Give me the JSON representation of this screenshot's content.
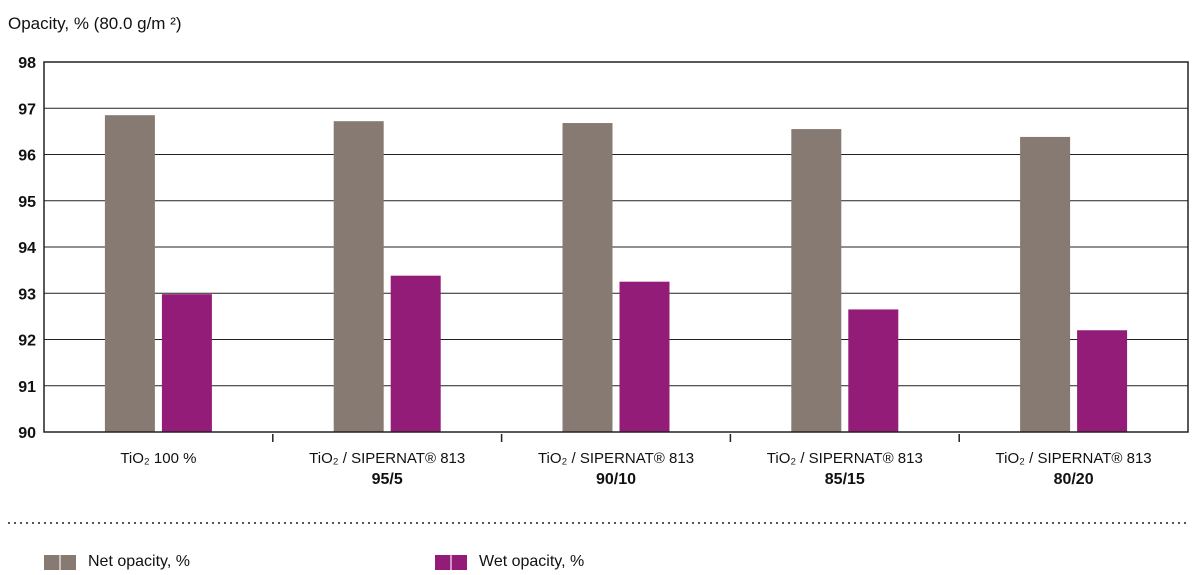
{
  "chart_data": {
    "type": "bar",
    "title": "Opacity, % (80.0 g/m ²)",
    "categories": [
      {
        "line1": "TiO₂ 100 %",
        "line2": ""
      },
      {
        "line1": "TiO₂ / SIPERNAT® 813",
        "line2": "95/5"
      },
      {
        "line1": "TiO₂ / SIPERNAT® 813",
        "line2": "90/10"
      },
      {
        "line1": "TiO₂ / SIPERNAT® 813",
        "line2": "85/15"
      },
      {
        "line1": "TiO₂ / SIPERNAT® 813",
        "line2": "80/20"
      }
    ],
    "series": [
      {
        "name": "Net opacity, %",
        "color": "#877a73",
        "values": [
          96.85,
          96.72,
          96.68,
          96.55,
          96.38
        ]
      },
      {
        "name": "Wet opacity, %",
        "color": "#931c78",
        "values": [
          92.98,
          93.38,
          93.25,
          92.65,
          92.2
        ]
      }
    ],
    "ylim": [
      90,
      98
    ],
    "yticks": [
      90,
      91,
      92,
      93,
      94,
      95,
      96,
      97,
      98
    ],
    "grid": true,
    "legend_position": "bottom"
  }
}
